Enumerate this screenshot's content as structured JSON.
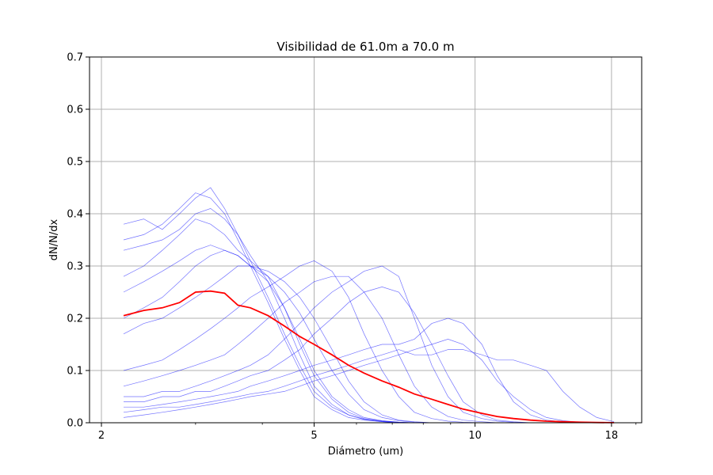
{
  "chart_data": {
    "type": "line",
    "title": "Visibilidad de 61.0m a 70.0 m",
    "xlabel": "Diámetro (um)",
    "ylabel": "dN/N/dx",
    "x_scale": "log",
    "xlim": [
      1.9,
      20.5
    ],
    "ylim": [
      0,
      0.7
    ],
    "xticks": [
      2,
      5,
      10,
      18
    ],
    "yticks": [
      0.0,
      0.1,
      0.2,
      0.3,
      0.4,
      0.5,
      0.6,
      0.7
    ],
    "grid": true,
    "colors": {
      "individual": "#0000ff",
      "mean": "#ff0000"
    },
    "x": [
      2.2,
      2.4,
      2.6,
      2.8,
      3.0,
      3.2,
      3.4,
      3.6,
      3.8,
      4.1,
      4.4,
      4.7,
      5.0,
      5.4,
      5.8,
      6.2,
      6.7,
      7.2,
      7.7,
      8.3,
      8.9,
      9.5,
      10.3,
      11.0,
      11.8,
      12.7,
      13.6,
      14.6,
      15.7,
      16.9,
      18.2
    ],
    "series": [
      {
        "values": [
          0.38,
          0.39,
          0.37,
          0.4,
          0.43,
          0.45,
          0.41,
          0.36,
          0.31,
          0.24,
          0.17,
          0.11,
          0.06,
          0.03,
          0.015,
          0.007,
          0.003,
          0.001,
          0,
          0,
          0,
          0,
          0,
          0,
          0,
          0,
          0,
          0,
          0,
          0,
          0
        ]
      },
      {
        "values": [
          0.35,
          0.36,
          0.38,
          0.41,
          0.44,
          0.43,
          0.4,
          0.35,
          0.3,
          0.23,
          0.16,
          0.1,
          0.05,
          0.025,
          0.01,
          0.005,
          0.002,
          0,
          0,
          0,
          0,
          0,
          0,
          0,
          0,
          0,
          0,
          0,
          0,
          0,
          0
        ]
      },
      {
        "values": [
          0.33,
          0.34,
          0.35,
          0.37,
          0.4,
          0.41,
          0.39,
          0.36,
          0.32,
          0.27,
          0.2,
          0.13,
          0.07,
          0.035,
          0.015,
          0.006,
          0.002,
          0,
          0,
          0,
          0,
          0,
          0,
          0,
          0,
          0,
          0,
          0,
          0,
          0,
          0
        ]
      },
      {
        "values": [
          0.28,
          0.3,
          0.33,
          0.36,
          0.39,
          0.38,
          0.36,
          0.33,
          0.31,
          0.28,
          0.22,
          0.15,
          0.09,
          0.045,
          0.02,
          0.008,
          0.003,
          0.001,
          0,
          0,
          0,
          0,
          0,
          0,
          0,
          0,
          0,
          0,
          0,
          0,
          0
        ]
      },
      {
        "values": [
          0.25,
          0.27,
          0.29,
          0.31,
          0.33,
          0.34,
          0.33,
          0.32,
          0.3,
          0.27,
          0.22,
          0.16,
          0.1,
          0.05,
          0.025,
          0.01,
          0.004,
          0.001,
          0,
          0,
          0,
          0,
          0,
          0,
          0,
          0,
          0,
          0,
          0,
          0,
          0
        ]
      },
      {
        "values": [
          0.2,
          0.22,
          0.24,
          0.27,
          0.3,
          0.32,
          0.33,
          0.32,
          0.3,
          0.28,
          0.25,
          0.21,
          0.16,
          0.1,
          0.055,
          0.025,
          0.01,
          0.004,
          0.001,
          0,
          0,
          0,
          0,
          0,
          0,
          0,
          0,
          0,
          0,
          0,
          0
        ]
      },
      {
        "values": [
          0.17,
          0.19,
          0.2,
          0.22,
          0.24,
          0.26,
          0.28,
          0.3,
          0.3,
          0.29,
          0.27,
          0.24,
          0.2,
          0.14,
          0.08,
          0.04,
          0.015,
          0.005,
          0.002,
          0,
          0,
          0,
          0,
          0,
          0,
          0,
          0,
          0,
          0,
          0,
          0
        ]
      },
      {
        "values": [
          0.1,
          0.11,
          0.12,
          0.14,
          0.16,
          0.18,
          0.2,
          0.22,
          0.24,
          0.26,
          0.28,
          0.3,
          0.31,
          0.29,
          0.24,
          0.17,
          0.1,
          0.05,
          0.02,
          0.008,
          0.003,
          0.001,
          0,
          0,
          0,
          0,
          0,
          0,
          0,
          0,
          0
        ]
      },
      {
        "values": [
          0.07,
          0.08,
          0.09,
          0.1,
          0.11,
          0.12,
          0.13,
          0.15,
          0.17,
          0.2,
          0.23,
          0.25,
          0.27,
          0.28,
          0.28,
          0.25,
          0.2,
          0.13,
          0.07,
          0.03,
          0.012,
          0.005,
          0.002,
          0,
          0,
          0,
          0,
          0,
          0,
          0,
          0
        ]
      },
      {
        "values": [
          0.05,
          0.05,
          0.06,
          0.06,
          0.07,
          0.08,
          0.09,
          0.1,
          0.11,
          0.13,
          0.16,
          0.19,
          0.22,
          0.25,
          0.27,
          0.29,
          0.3,
          0.28,
          0.2,
          0.11,
          0.05,
          0.02,
          0.008,
          0.003,
          0.001,
          0,
          0,
          0,
          0,
          0,
          0
        ]
      },
      {
        "values": [
          0.04,
          0.04,
          0.05,
          0.05,
          0.06,
          0.06,
          0.07,
          0.08,
          0.09,
          0.1,
          0.12,
          0.14,
          0.17,
          0.2,
          0.23,
          0.25,
          0.26,
          0.25,
          0.21,
          0.15,
          0.09,
          0.04,
          0.015,
          0.005,
          0.002,
          0,
          0,
          0,
          0,
          0,
          0
        ]
      },
      {
        "values": [
          0.03,
          0.03,
          0.035,
          0.04,
          0.045,
          0.05,
          0.055,
          0.06,
          0.07,
          0.08,
          0.09,
          0.1,
          0.11,
          0.12,
          0.13,
          0.14,
          0.15,
          0.15,
          0.16,
          0.19,
          0.2,
          0.19,
          0.15,
          0.09,
          0.04,
          0.015,
          0.005,
          0.002,
          0,
          0,
          0
        ]
      },
      {
        "values": [
          0.02,
          0.025,
          0.03,
          0.03,
          0.035,
          0.04,
          0.045,
          0.05,
          0.055,
          0.06,
          0.07,
          0.08,
          0.09,
          0.1,
          0.11,
          0.12,
          0.13,
          0.14,
          0.13,
          0.13,
          0.14,
          0.14,
          0.13,
          0.12,
          0.12,
          0.11,
          0.1,
          0.06,
          0.03,
          0.01,
          0.002
        ]
      },
      {
        "values": [
          0.01,
          0.015,
          0.02,
          0.025,
          0.03,
          0.035,
          0.04,
          0.045,
          0.05,
          0.055,
          0.06,
          0.07,
          0.08,
          0.09,
          0.1,
          0.11,
          0.12,
          0.13,
          0.14,
          0.15,
          0.16,
          0.15,
          0.12,
          0.08,
          0.05,
          0.025,
          0.01,
          0.004,
          0.001,
          0,
          0
        ]
      }
    ],
    "mean": [
      0.205,
      0.215,
      0.22,
      0.23,
      0.25,
      0.252,
      0.248,
      0.225,
      0.22,
      0.205,
      0.185,
      0.165,
      0.15,
      0.13,
      0.11,
      0.095,
      0.08,
      0.068,
      0.055,
      0.045,
      0.035,
      0.026,
      0.018,
      0.012,
      0.008,
      0.005,
      0.003,
      0.002,
      0.001,
      0.0005,
      0.0002
    ]
  }
}
